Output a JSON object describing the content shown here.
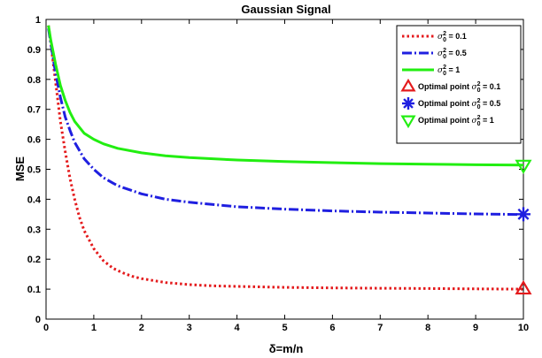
{
  "chart_data": {
    "type": "line",
    "title": "Gaussian Signal",
    "xlabel": "δ=m/n",
    "ylabel": "MSE",
    "xlim": [
      0,
      10
    ],
    "ylim": [
      0,
      1
    ],
    "xticks": [
      "0",
      "1",
      "2",
      "3",
      "4",
      "5",
      "6",
      "7",
      "8",
      "9",
      "10"
    ],
    "yticks": [
      "0",
      "0.1",
      "0.2",
      "0.3",
      "0.4",
      "0.5",
      "0.6",
      "0.7",
      "0.8",
      "0.9",
      "1"
    ],
    "grid": false,
    "legend_position": "top-right",
    "series": [
      {
        "name": "σ0^2 = 0.1",
        "sigma_label": "0.1",
        "color": "#e41a1c",
        "style": "dotted",
        "x": [
          0.05,
          0.1,
          0.2,
          0.3,
          0.4,
          0.5,
          0.6,
          0.7,
          0.8,
          1.0,
          1.2,
          1.4,
          1.6,
          1.8,
          2.0,
          2.5,
          3.0,
          3.5,
          4.0,
          5.0,
          6.0,
          7.0,
          8.0,
          9.0,
          10.0
        ],
        "y": [
          0.98,
          0.92,
          0.79,
          0.66,
          0.56,
          0.47,
          0.4,
          0.34,
          0.295,
          0.235,
          0.195,
          0.17,
          0.155,
          0.143,
          0.135,
          0.122,
          0.115,
          0.111,
          0.109,
          0.106,
          0.104,
          0.103,
          0.102,
          0.101,
          0.1
        ]
      },
      {
        "name": "σ0^2 = 0.5",
        "sigma_label": "0.5",
        "color": "#1f1fe0",
        "style": "dashdot",
        "x": [
          0.05,
          0.1,
          0.2,
          0.3,
          0.4,
          0.5,
          0.6,
          0.8,
          1.0,
          1.2,
          1.5,
          2.0,
          2.5,
          3.0,
          4.0,
          5.0,
          6.0,
          7.0,
          8.0,
          9.0,
          10.0
        ],
        "y": [
          0.97,
          0.92,
          0.82,
          0.74,
          0.675,
          0.63,
          0.59,
          0.535,
          0.5,
          0.472,
          0.445,
          0.418,
          0.4,
          0.39,
          0.375,
          0.367,
          0.361,
          0.357,
          0.354,
          0.351,
          0.349
        ]
      },
      {
        "name": "σ0^2 = 1",
        "sigma_label": "1",
        "color": "#22ee11",
        "style": "solid",
        "x": [
          0.05,
          0.1,
          0.2,
          0.3,
          0.4,
          0.5,
          0.6,
          0.8,
          1.0,
          1.2,
          1.5,
          2.0,
          2.5,
          3.0,
          4.0,
          5.0,
          6.0,
          7.0,
          8.0,
          9.0,
          10.0
        ],
        "y": [
          0.98,
          0.93,
          0.85,
          0.78,
          0.73,
          0.69,
          0.66,
          0.62,
          0.6,
          0.585,
          0.57,
          0.555,
          0.545,
          0.539,
          0.531,
          0.526,
          0.522,
          0.519,
          0.517,
          0.515,
          0.514
        ]
      }
    ],
    "markers": [
      {
        "label_prefix": "Optimal point",
        "sigma_label": "0.1",
        "shape": "triangle-up",
        "color": "#e41a1c",
        "x": 10,
        "y": 0.1
      },
      {
        "label_prefix": "Optimal point",
        "sigma_label": "0.5",
        "shape": "asterisk",
        "color": "#1f1fe0",
        "x": 10,
        "y": 0.35
      },
      {
        "label_prefix": "Optimal point",
        "sigma_label": "1",
        "shape": "triangle-down",
        "color": "#22ee11",
        "x": 10,
        "y": 0.514
      }
    ]
  }
}
